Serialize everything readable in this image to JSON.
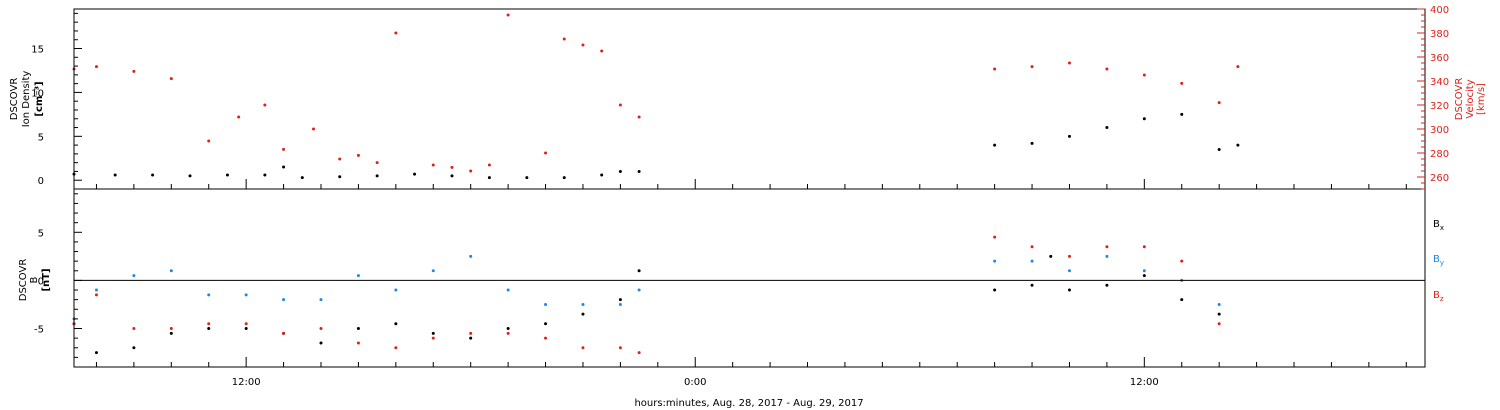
{
  "chart_data": [
    {
      "type": "scatter",
      "panel": "top",
      "ylabel_left": [
        "DSCOVR",
        "Ion Density",
        "[cm⁻³]"
      ],
      "ylabel_right": [
        "DSCOVR",
        "Velocity",
        "[km/s]"
      ],
      "ylim_left": [
        -1,
        19.5
      ],
      "yticks_left": [
        "0",
        "5",
        "10",
        "15"
      ],
      "ylim_right": [
        250,
        400
      ],
      "yticks_right": [
        "260",
        "280",
        "300",
        "320",
        "340",
        "360",
        "380",
        "400"
      ],
      "right_axis_color": "#e0201b",
      "series": [
        {
          "name": "",
          "axis": "left",
          "color": "#000000",
          "x": [
            7.4,
            8.5,
            9.5,
            10.5,
            11.5,
            12.5,
            13.0,
            13.5,
            14.5,
            15.5,
            16.5,
            17.5,
            18.5,
            19.5,
            20.5,
            21.5,
            22.0,
            22.5,
            32.0,
            33.0,
            34.0,
            35.0,
            36.0,
            37.0,
            38.0,
            38.5
          ],
          "y": [
            0.7,
            0.6,
            0.6,
            0.5,
            0.6,
            0.6,
            1.5,
            0.3,
            0.4,
            0.5,
            0.7,
            0.5,
            0.3,
            0.3,
            0.3,
            0.6,
            1.0,
            1.0,
            4.0,
            4.2,
            5.0,
            6.0,
            7.0,
            7.5,
            3.5,
            4.0
          ]
        },
        {
          "name": "",
          "axis": "right",
          "color": "#e0201b",
          "x": [
            7.4,
            8.0,
            9.0,
            10.0,
            11.0,
            11.8,
            12.5,
            13.0,
            13.8,
            14.5,
            15.0,
            15.5,
            16.0,
            17.0,
            17.5,
            18.0,
            18.5,
            19.0,
            20.0,
            20.5,
            21.0,
            21.5,
            22.0,
            22.5,
            32.0,
            33.0,
            34.0,
            35.0,
            36.0,
            37.0,
            38.0,
            38.5
          ],
          "y": [
            350,
            352,
            348,
            342,
            290,
            310,
            320,
            283,
            300,
            275,
            278,
            272,
            380,
            270,
            268,
            265,
            270,
            395,
            280,
            375,
            370,
            365,
            320,
            310,
            350,
            352,
            355,
            350,
            345,
            338,
            322,
            352
          ]
        }
      ]
    },
    {
      "type": "scatter",
      "panel": "bottom",
      "ylabel_left": [
        "DSCOVR",
        "B",
        "[nT]"
      ],
      "ylim": [
        -9,
        9.5
      ],
      "yticks": [
        "-5",
        "0",
        "5"
      ],
      "x_ticks": [
        "12:00",
        "0:00",
        "12:00"
      ],
      "x_tick_hours": [
        12,
        24,
        36
      ],
      "x_range_hours": [
        7.4,
        43.5
      ],
      "xlabel": "hours:minutes, Aug. 28, 2017 - Aug. 29, 2017",
      "legend": [
        {
          "base": "B",
          "sub": "x",
          "color": "#000000"
        },
        {
          "base": "B",
          "sub": "y",
          "color": "#1e88e5"
        },
        {
          "base": "B",
          "sub": "z",
          "color": "#e0201b"
        }
      ],
      "series": [
        {
          "name": "Bx",
          "color": "#000000",
          "x": [
            7.4,
            8.0,
            9.0,
            10.0,
            11.0,
            12.0,
            13.0,
            14.0,
            15.0,
            16.0,
            17.0,
            18.0,
            19.0,
            20.0,
            21.0,
            22.0,
            22.5,
            32.0,
            33.0,
            33.5,
            34.0,
            35.0,
            36.0,
            37.0,
            38.0
          ],
          "y": [
            -4.5,
            -7.5,
            -7.0,
            -5.5,
            -5.0,
            -5.0,
            -5.5,
            -6.5,
            -5.0,
            -4.5,
            -5.5,
            -6.0,
            -5.0,
            -4.5,
            -3.5,
            -2.0,
            1.0,
            -1.0,
            -0.5,
            2.5,
            -1.0,
            -0.5,
            0.5,
            -2.0,
            -3.5
          ]
        },
        {
          "name": "By",
          "color": "#1e88e5",
          "x": [
            7.4,
            8.0,
            9.0,
            10.0,
            11.0,
            12.0,
            13.0,
            14.0,
            15.0,
            16.0,
            17.0,
            18.0,
            19.0,
            20.0,
            21.0,
            22.0,
            22.5,
            32.0,
            33.0,
            34.0,
            35.0,
            36.0,
            37.0,
            38.0
          ],
          "y": [
            -4.0,
            -1.0,
            0.5,
            1.0,
            -1.5,
            -1.5,
            -2.0,
            -2.0,
            0.5,
            -1.0,
            1.0,
            2.5,
            -1.0,
            -2.5,
            -2.5,
            -2.5,
            -1.0,
            2.0,
            2.0,
            1.0,
            2.5,
            1.0,
            0.0,
            -2.5
          ]
        },
        {
          "name": "Bz",
          "color": "#e0201b",
          "x": [
            7.4,
            8.0,
            9.0,
            10.0,
            11.0,
            12.0,
            13.0,
            14.0,
            15.0,
            16.0,
            17.0,
            18.0,
            19.0,
            20.0,
            21.0,
            22.0,
            22.5,
            32.0,
            33.0,
            34.0,
            35.0,
            36.0,
            37.0,
            38.0
          ],
          "y": [
            -4.5,
            -1.5,
            -5.0,
            -5.0,
            -4.5,
            -4.5,
            -5.5,
            -5.0,
            -6.5,
            -7.0,
            -6.0,
            -5.5,
            -5.5,
            -6.0,
            -7.0,
            -7.0,
            -7.5,
            4.5,
            3.5,
            2.5,
            3.5,
            3.5,
            2.0,
            -4.5
          ]
        }
      ]
    }
  ]
}
